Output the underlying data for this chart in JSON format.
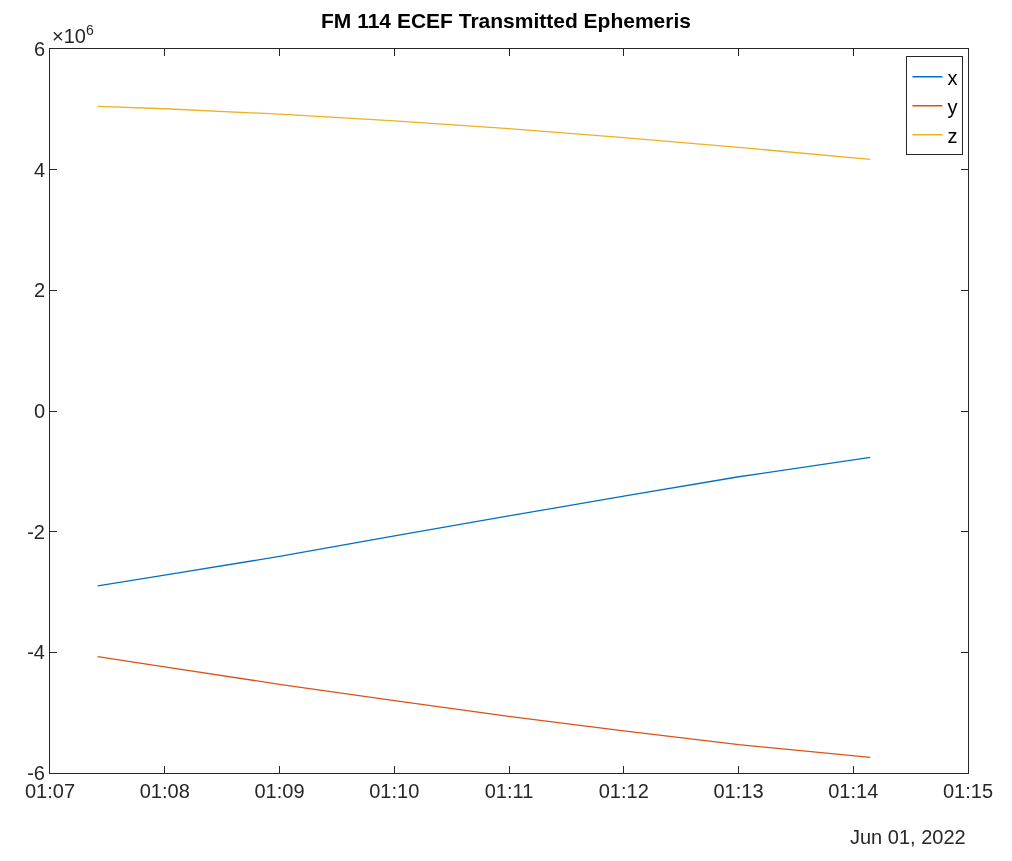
{
  "chart_data": {
    "type": "line",
    "title": "FM 114 ECEF Transmitted Ephemeris",
    "x": [
      1.1236,
      1.1333,
      1.15,
      1.1667,
      1.1833,
      1.2,
      1.2167,
      1.2358
    ],
    "series": [
      {
        "name": "x",
        "color": "#0072bd",
        "values": [
          -2.9,
          -2.72,
          -2.41,
          -2.07,
          -1.74,
          -1.41,
          -1.09,
          -0.77
        ]
      },
      {
        "name": "y",
        "color": "#d95319",
        "values": [
          -4.07,
          -4.24,
          -4.53,
          -4.8,
          -5.06,
          -5.3,
          -5.53,
          -5.74
        ]
      },
      {
        "name": "z",
        "color": "#edb120",
        "values": [
          5.05,
          5.01,
          4.92,
          4.81,
          4.68,
          4.53,
          4.37,
          4.17
        ]
      }
    ],
    "xlim": [
      1.116667,
      1.25
    ],
    "xticks": [
      {
        "value": 1.116667,
        "label": "01:07"
      },
      {
        "value": 1.133333,
        "label": "01:08"
      },
      {
        "value": 1.15,
        "label": "01:09"
      },
      {
        "value": 1.166667,
        "label": "01:10"
      },
      {
        "value": 1.183333,
        "label": "01:11"
      },
      {
        "value": 1.2,
        "label": "01:12"
      },
      {
        "value": 1.216667,
        "label": "01:13"
      },
      {
        "value": 1.233333,
        "label": "01:14"
      },
      {
        "value": 1.25,
        "label": "01:15"
      }
    ],
    "ylim": [
      -6,
      6
    ],
    "yticks": [
      -6,
      -4,
      -2,
      0,
      2,
      4,
      6
    ],
    "annotations": [
      "×10$^{6}$",
      "Jun 01, 2022"
    ],
    "legend": "top right",
    "marker": "none",
    "line_style": "solid"
  }
}
